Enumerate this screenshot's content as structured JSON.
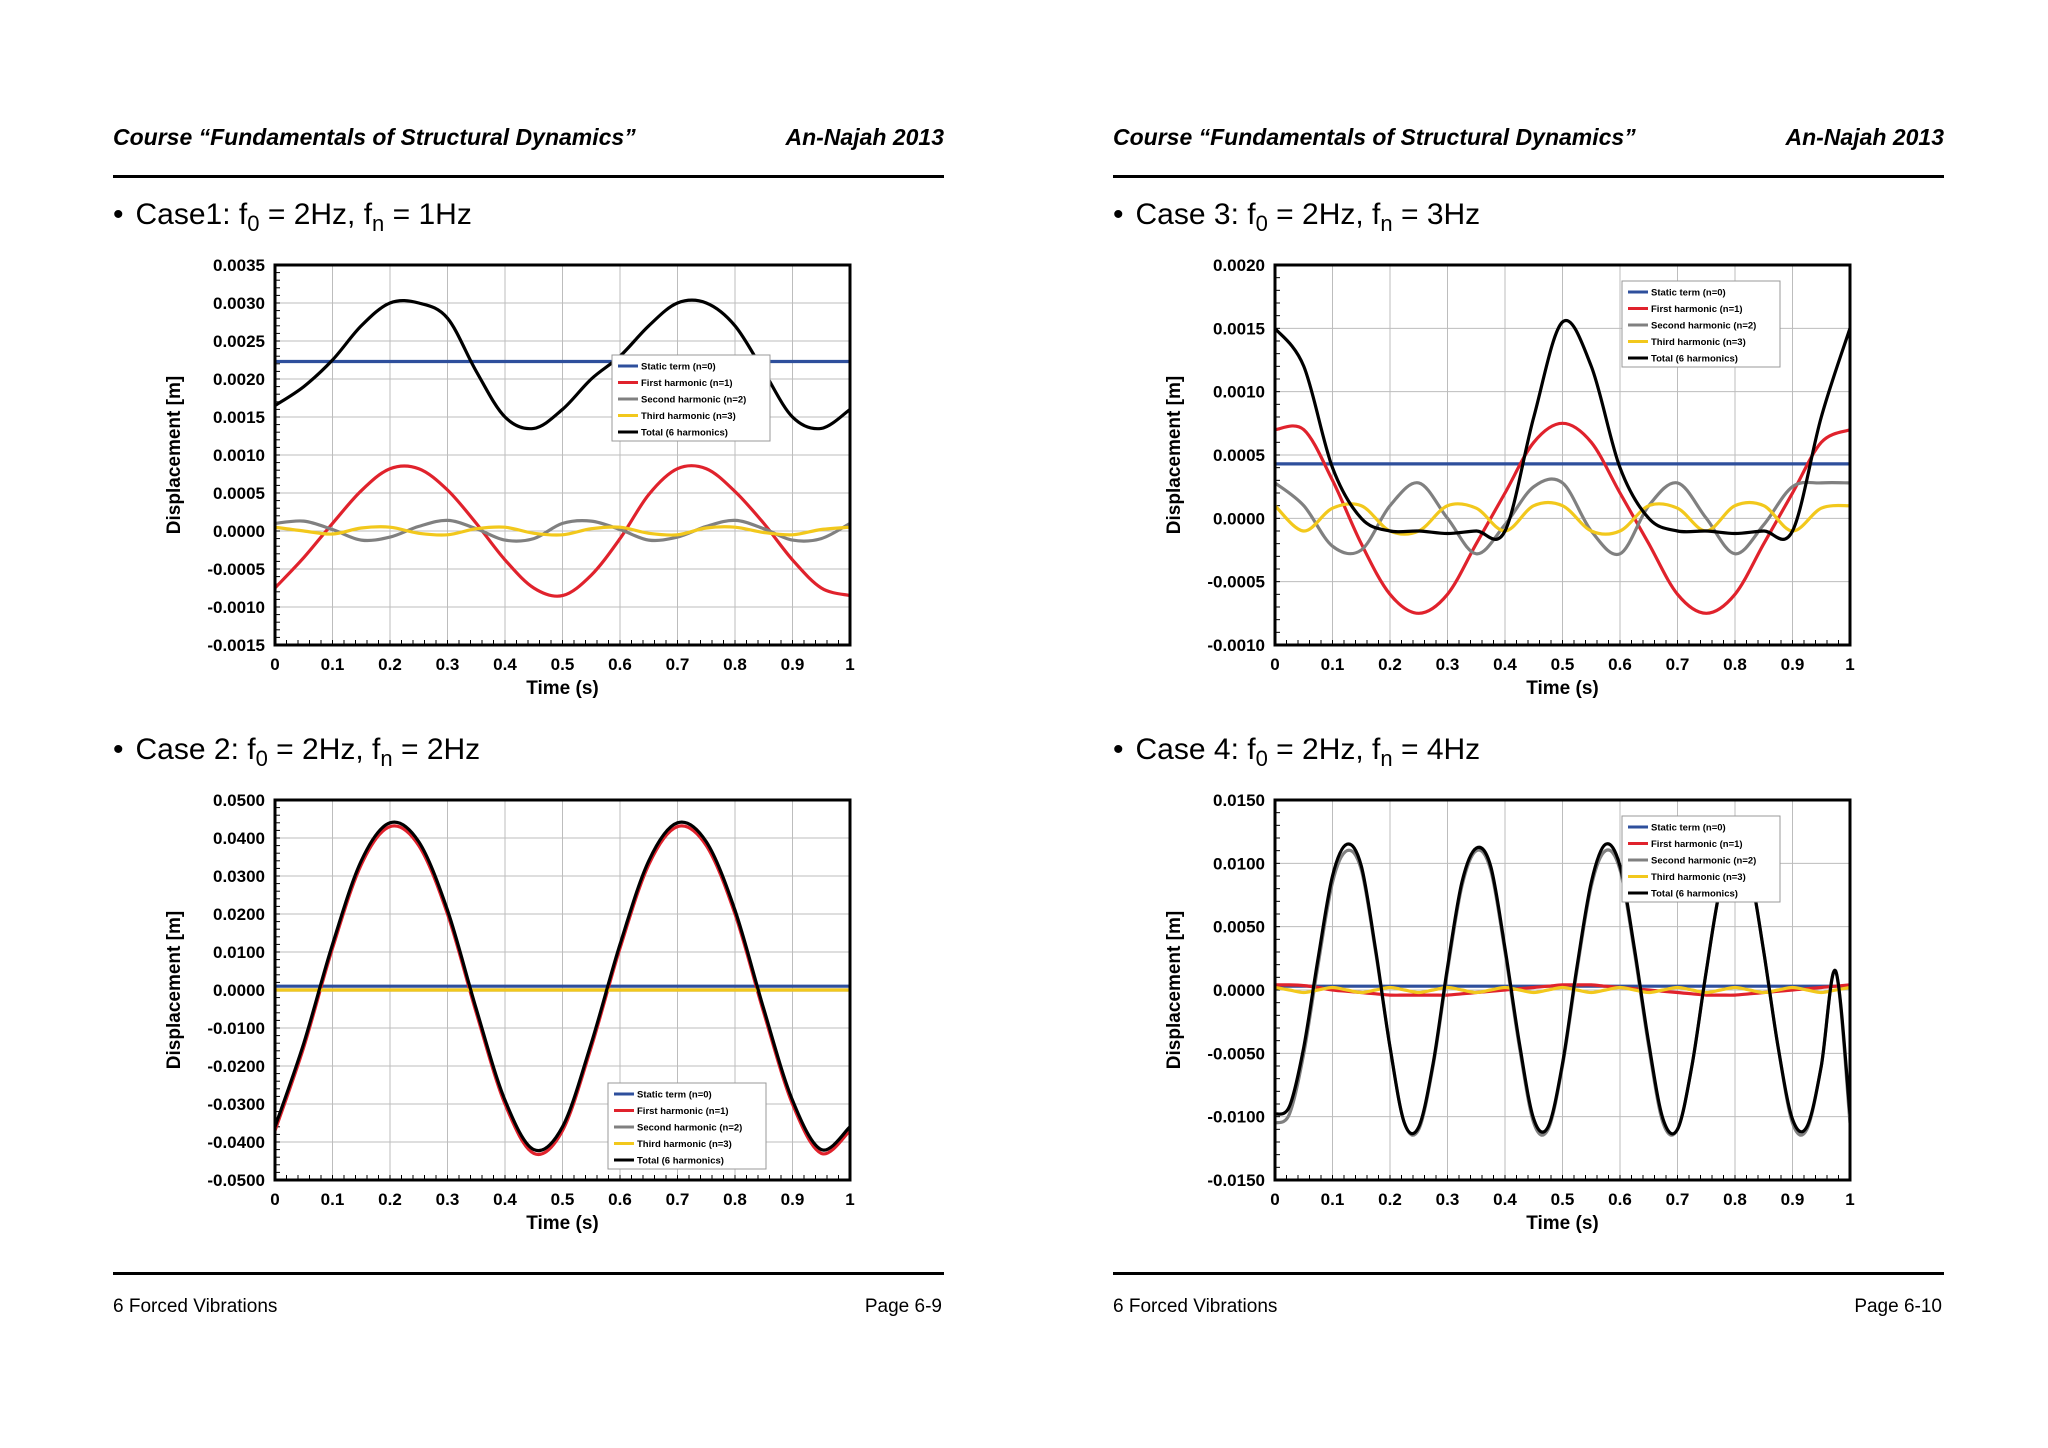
{
  "pages": [
    {
      "header": {
        "course": "Course “Fundamentals of Structural Dynamics”",
        "institution": "An-Najah 2013"
      },
      "footer": {
        "section": "6 Forced Vibrations",
        "page": "Page 6-9"
      },
      "cases": [
        {
          "prefix": "Case1: f",
          "sub1": "0",
          "mid": " = 2Hz, f",
          "sub2": "n",
          "suffix": " = 1Hz"
        },
        {
          "prefix": "Case 2: f",
          "sub1": "0",
          "mid": " = 2Hz, f",
          "sub2": "n",
          "suffix": " = 2Hz"
        }
      ]
    },
    {
      "header": {
        "course": "Course “Fundamentals of Structural Dynamics”",
        "institution": "An-Najah 2013"
      },
      "footer": {
        "section": "6 Forced Vibrations",
        "page": "Page 6-10"
      },
      "cases": [
        {
          "prefix": "Case 3: f",
          "sub1": "0",
          "mid": " = 2Hz, f",
          "sub2": "n",
          "suffix": " = 3Hz"
        },
        {
          "prefix": "Case 4: f",
          "sub1": "0",
          "mid": " = 2Hz, f",
          "sub2": "n",
          "suffix": " = 4Hz"
        }
      ]
    }
  ],
  "colors": {
    "static": "#2e4f9c",
    "first": "#e0222c",
    "second": "#808080",
    "third": "#f2c81c",
    "total": "#000000"
  },
  "chart_data": [
    {
      "type": "line",
      "case": "Case1",
      "xlabel": "Time (s)",
      "ylabel": "Displacement [m]",
      "xlim": [
        0,
        1
      ],
      "ylim": [
        -0.0015,
        0.0035
      ],
      "xticks": [
        "0",
        "0.1",
        "0.2",
        "0.3",
        "0.4",
        "0.5",
        "0.6",
        "0.7",
        "0.8",
        "0.9",
        "1"
      ],
      "yticks": [
        "-0.0015",
        "-0.0010",
        "-0.0005",
        "0.0000",
        "0.0005",
        "0.0010",
        "0.0015",
        "0.0020",
        "0.0025",
        "0.0030",
        "0.0035"
      ],
      "grid": true,
      "legend_position": "center-right",
      "x": [
        0,
        0.05,
        0.1,
        0.15,
        0.2,
        0.25,
        0.3,
        0.35,
        0.4,
        0.45,
        0.5,
        0.55,
        0.6,
        0.65,
        0.7,
        0.75,
        0.8,
        0.85,
        0.9,
        0.95,
        1
      ],
      "series": [
        {
          "name": "Static term (n=0)",
          "color_key": "static",
          "values": [
            0.00223,
            0.00223,
            0.00223,
            0.00223,
            0.00223,
            0.00223,
            0.00223,
            0.00223,
            0.00223,
            0.00223,
            0.00223,
            0.00223,
            0.00223,
            0.00223,
            0.00223,
            0.00223,
            0.00223,
            0.00223,
            0.00223,
            0.00223,
            0.00223
          ]
        },
        {
          "name": "First harmonic (n=1)",
          "color_key": "first",
          "values": [
            -0.00075,
            -0.00035,
            0.0001,
            0.00053,
            0.00082,
            0.00082,
            0.00054,
            0.0001,
            -0.00038,
            -0.00075,
            -0.00085,
            -0.00058,
            -0.0001,
            0.00048,
            0.00082,
            0.00082,
            0.00052,
            0.0001,
            -0.00038,
            -0.00075,
            -0.00085
          ]
        },
        {
          "name": "Second harmonic (n=2)",
          "color_key": "second",
          "values": [
            0.0001,
            0.00013,
            2e-05,
            -0.00012,
            -8e-05,
            6e-05,
            0.00014,
            3e-05,
            -0.00012,
            -0.0001,
            0.0001,
            0.00013,
            2e-05,
            -0.00012,
            -8e-05,
            6e-05,
            0.00014,
            3e-05,
            -0.00012,
            -0.0001,
            0.0001
          ]
        },
        {
          "name": "Third harmonic (n=3)",
          "color_key": "third",
          "values": [
            5e-05,
            0.0,
            -4e-05,
            4e-05,
            5e-05,
            -3e-05,
            -5e-05,
            3e-05,
            5e-05,
            -3e-05,
            -5e-05,
            3e-05,
            5e-05,
            -3e-05,
            -5e-05,
            4e-05,
            5e-05,
            -2e-05,
            -5e-05,
            2e-05,
            5e-05
          ]
        },
        {
          "name": "Total (6 harmonics)",
          "color_key": "total",
          "values": [
            0.00165,
            0.0019,
            0.00225,
            0.0027,
            0.003,
            0.003,
            0.0028,
            0.0021,
            0.0015,
            0.00135,
            0.0016,
            0.002,
            0.0023,
            0.0027,
            0.003,
            0.003,
            0.0027,
            0.0021,
            0.0015,
            0.00135,
            0.0016
          ]
        }
      ]
    },
    {
      "type": "line",
      "case": "Case 2",
      "xlabel": "Time (s)",
      "ylabel": "Displacement [m]",
      "xlim": [
        0,
        1
      ],
      "ylim": [
        -0.05,
        0.05
      ],
      "xticks": [
        "0",
        "0.1",
        "0.2",
        "0.3",
        "0.4",
        "0.5",
        "0.6",
        "0.7",
        "0.8",
        "0.9",
        "1"
      ],
      "yticks": [
        "-0.0500",
        "-0.0400",
        "-0.0300",
        "-0.0200",
        "-0.0100",
        "0.0000",
        "0.0100",
        "0.0200",
        "0.0300",
        "0.0400",
        "0.0500"
      ],
      "grid": true,
      "legend_position": "bottom-right",
      "x": [
        0,
        0.05,
        0.1,
        0.15,
        0.2,
        0.25,
        0.3,
        0.35,
        0.4,
        0.45,
        0.5,
        0.55,
        0.6,
        0.65,
        0.7,
        0.75,
        0.8,
        0.85,
        0.9,
        0.95,
        1
      ],
      "series": [
        {
          "name": "Static term (n=0)",
          "color_key": "static",
          "values": [
            0.001,
            0.001,
            0.001,
            0.001,
            0.001,
            0.001,
            0.001,
            0.001,
            0.001,
            0.001,
            0.001,
            0.001,
            0.001,
            0.001,
            0.001,
            0.001,
            0.001,
            0.001,
            0.001,
            0.001,
            0.001
          ]
        },
        {
          "name": "First harmonic (n=1)",
          "color_key": "first",
          "values": [
            -0.037,
            -0.015,
            0.011,
            0.033,
            0.043,
            0.038,
            0.02,
            -0.006,
            -0.03,
            -0.043,
            -0.037,
            -0.015,
            0.011,
            0.033,
            0.043,
            0.038,
            0.02,
            -0.006,
            -0.03,
            -0.043,
            -0.037
          ]
        },
        {
          "name": "Second harmonic (n=2)",
          "color_key": "second",
          "values": [
            0.0,
            0.0,
            0.0,
            0.0,
            0.0,
            0.0,
            0.0,
            0.0,
            0.0,
            0.0,
            0.0,
            0.0,
            0.0,
            0.0,
            0.0,
            0.0,
            0.0,
            0.0,
            0.0,
            0.0,
            0.0
          ]
        },
        {
          "name": "Third harmonic (n=3)",
          "color_key": "third",
          "values": [
            0.0,
            0.0,
            0.0,
            0.0,
            0.0,
            0.0,
            0.0,
            0.0,
            0.0,
            0.0,
            0.0,
            0.0,
            0.0,
            0.0,
            0.0,
            0.0,
            0.0,
            0.0,
            0.0,
            0.0,
            0.0
          ]
        },
        {
          "name": "Total (6 harmonics)",
          "color_key": "total",
          "values": [
            -0.036,
            -0.014,
            0.012,
            0.034,
            0.044,
            0.039,
            0.021,
            -0.005,
            -0.029,
            -0.042,
            -0.036,
            -0.014,
            0.012,
            0.034,
            0.044,
            0.039,
            0.021,
            -0.005,
            -0.029,
            -0.042,
            -0.036
          ]
        }
      ]
    },
    {
      "type": "line",
      "case": "Case 3",
      "xlabel": "Time (s)",
      "ylabel": "Displacement [m]",
      "xlim": [
        0,
        1
      ],
      "ylim": [
        -0.001,
        0.002
      ],
      "xticks": [
        "0",
        "0.1",
        "0.2",
        "0.3",
        "0.4",
        "0.5",
        "0.6",
        "0.7",
        "0.8",
        "0.9",
        "1"
      ],
      "yticks": [
        "-0.0010",
        "-0.0005",
        "0.0000",
        "0.0005",
        "0.0010",
        "0.0015",
        "0.0020"
      ],
      "grid": true,
      "legend_position": "top-right",
      "x": [
        0,
        0.05,
        0.1,
        0.15,
        0.2,
        0.25,
        0.3,
        0.35,
        0.4,
        0.45,
        0.5,
        0.55,
        0.6,
        0.65,
        0.7,
        0.75,
        0.8,
        0.85,
        0.9,
        0.95,
        1
      ],
      "series": [
        {
          "name": "Static term (n=0)",
          "color_key": "static",
          "values": [
            0.00043,
            0.00043,
            0.00043,
            0.00043,
            0.00043,
            0.00043,
            0.00043,
            0.00043,
            0.00043,
            0.00043,
            0.00043,
            0.00043,
            0.00043,
            0.00043,
            0.00043,
            0.00043,
            0.00043,
            0.00043,
            0.00043,
            0.00043,
            0.00043
          ]
        },
        {
          "name": "First harmonic (n=1)",
          "color_key": "first",
          "values": [
            0.0007,
            0.0007,
            0.0003,
            -0.0002,
            -0.0006,
            -0.00075,
            -0.0006,
            -0.0002,
            0.0002,
            0.0006,
            0.00075,
            0.0006,
            0.0002,
            -0.0002,
            -0.0006,
            -0.00075,
            -0.0006,
            -0.0002,
            0.0002,
            0.0006,
            0.0007
          ]
        },
        {
          "name": "Second harmonic (n=2)",
          "color_key": "second",
          "values": [
            0.00028,
            0.0001,
            -0.00022,
            -0.00025,
            0.0001,
            0.00028,
            0.0,
            -0.00028,
            -5e-05,
            0.00025,
            0.00028,
            -0.0001,
            -0.00028,
            0.0001,
            0.00028,
            0.0,
            -0.00028,
            -5e-05,
            0.00025,
            0.00028,
            0.00028
          ]
        },
        {
          "name": "Third harmonic (n=3)",
          "color_key": "third",
          "values": [
            0.0001,
            -0.0001,
            8e-05,
            0.0001,
            -0.0001,
            -0.0001,
            0.0001,
            8e-05,
            -0.0001,
            0.0001,
            0.0001,
            -0.0001,
            -0.0001,
            0.0001,
            8e-05,
            -0.0001,
            0.0001,
            0.0001,
            -0.0001,
            8e-05,
            0.0001
          ]
        },
        {
          "name": "Total (6 harmonics)",
          "color_key": "total",
          "values": [
            0.0015,
            0.0012,
            0.0004,
            0.0,
            -0.0001,
            -0.0001,
            -0.00012,
            -0.0001,
            -0.0001,
            0.0008,
            0.00155,
            0.0012,
            0.0004,
            0.0,
            -0.0001,
            -0.0001,
            -0.00012,
            -0.0001,
            -0.0001,
            0.0008,
            0.0015
          ]
        }
      ]
    },
    {
      "type": "line",
      "case": "Case 4",
      "xlabel": "Time (s)",
      "ylabel": "Displacement [m]",
      "xlim": [
        0,
        1
      ],
      "ylim": [
        -0.015,
        0.015
      ],
      "xticks": [
        "0",
        "0.1",
        "0.2",
        "0.3",
        "0.4",
        "0.5",
        "0.6",
        "0.7",
        "0.8",
        "0.9",
        "1"
      ],
      "yticks": [
        "-0.0150",
        "-0.0100",
        "-0.0050",
        "0.0000",
        "0.0050",
        "0.0100",
        "0.0150"
      ],
      "grid": true,
      "legend_position": "top-right",
      "x": [
        0,
        0.025,
        0.05,
        0.075,
        0.1,
        0.125,
        0.15,
        0.175,
        0.2,
        0.225,
        0.25,
        0.275,
        0.3,
        0.325,
        0.35,
        0.375,
        0.4,
        0.425,
        0.45,
        0.475,
        0.5,
        0.525,
        0.55,
        0.575,
        0.6,
        0.625,
        0.65,
        0.675,
        0.7,
        0.725,
        0.75,
        0.775,
        0.8,
        0.825,
        0.85,
        0.875,
        0.9,
        0.925,
        0.95,
        0.975,
        1
      ],
      "series": [
        {
          "name": "Static term (n=0)",
          "color_key": "static",
          "values": [
            0.0003,
            0.0003,
            0.0003,
            0.0003,
            0.0003,
            0.0003,
            0.0003,
            0.0003,
            0.0003,
            0.0003,
            0.0003,
            0.0003,
            0.0003,
            0.0003,
            0.0003,
            0.0003,
            0.0003,
            0.0003,
            0.0003,
            0.0003,
            0.0003,
            0.0003,
            0.0003,
            0.0003,
            0.0003,
            0.0003,
            0.0003,
            0.0003,
            0.0003,
            0.0003,
            0.0003,
            0.0003,
            0.0003,
            0.0003,
            0.0003,
            0.0003,
            0.0003,
            0.0003,
            0.0003,
            0.0003,
            0.0003
          ]
        },
        {
          "name": "First harmonic (n=1)",
          "color_key": "first",
          "values": [
            0.0004,
            0.0004,
            0.00035,
            0.0002,
            0.0,
            -0.0001,
            -0.0002,
            -0.0003,
            -0.0004,
            -0.0004,
            -0.0004,
            -0.0004,
            -0.0004,
            -0.0003,
            -0.0002,
            -0.0001,
            0.0,
            0.0001,
            0.0002,
            0.0003,
            0.0004,
            0.0004,
            0.0004,
            0.0003,
            0.0002,
            0.0001,
            0.0,
            -0.0001,
            -0.0002,
            -0.0003,
            -0.0004,
            -0.0004,
            -0.0004,
            -0.0003,
            -0.0002,
            -0.0001,
            0.0,
            0.0001,
            0.0002,
            0.0003,
            0.0004
          ]
        },
        {
          "name": "Second harmonic (n=2)",
          "color_key": "second",
          "values": [
            -0.0105,
            -0.0098,
            -0.005,
            0.002,
            0.0085,
            0.011,
            0.0095,
            0.003,
            -0.0045,
            -0.0105,
            -0.011,
            -0.006,
            0.0015,
            0.0082,
            0.011,
            0.0095,
            0.003,
            -0.0045,
            -0.0105,
            -0.011,
            -0.006,
            0.0015,
            0.0082,
            0.011,
            0.0095,
            0.003,
            -0.0045,
            -0.0105,
            -0.011,
            -0.006,
            0.0015,
            0.0082,
            0.011,
            0.0095,
            0.003,
            -0.0045,
            -0.0105,
            -0.011,
            -0.006,
            0.0015,
            -0.0105
          ]
        },
        {
          "name": "Third harmonic (n=3)",
          "color_key": "third",
          "values": [
            0.0002,
            0.0,
            -0.0002,
            0.0,
            0.0002,
            0.0,
            -0.0002,
            0.0,
            0.0002,
            0.0,
            -0.0002,
            0.0,
            0.0002,
            0.0,
            -0.0002,
            0.0,
            0.0002,
            0.0,
            -0.0002,
            0.0,
            0.0002,
            0.0,
            -0.0002,
            0.0,
            0.0002,
            0.0,
            -0.0002,
            0.0,
            0.0002,
            0.0,
            -0.0002,
            0.0,
            0.0002,
            0.0,
            -0.0002,
            0.0,
            0.0002,
            0.0,
            -0.0002,
            0.0,
            0.0002
          ]
        },
        {
          "name": "Total (6 harmonics)",
          "color_key": "total",
          "values": [
            -0.0098,
            -0.0092,
            -0.0045,
            0.0025,
            0.009,
            0.0115,
            0.0098,
            0.0032,
            -0.0045,
            -0.0105,
            -0.0108,
            -0.0058,
            0.0018,
            0.0085,
            0.0112,
            0.0098,
            0.0033,
            -0.0042,
            -0.0102,
            -0.0108,
            -0.0058,
            0.0018,
            0.0085,
            0.0115,
            0.0098,
            0.0033,
            -0.0042,
            -0.0102,
            -0.011,
            -0.006,
            0.0015,
            0.0082,
            0.0112,
            0.0095,
            0.003,
            -0.0045,
            -0.0102,
            -0.0108,
            -0.006,
            0.0015,
            -0.0098
          ]
        }
      ]
    }
  ]
}
